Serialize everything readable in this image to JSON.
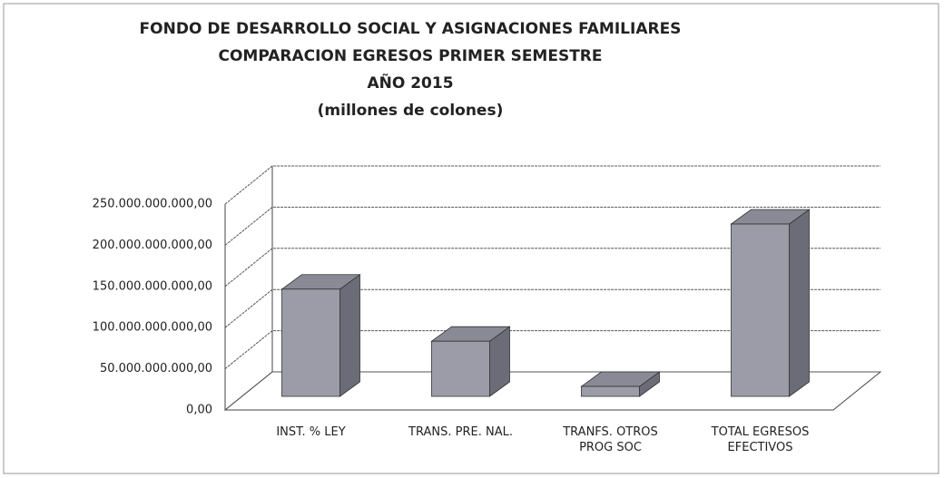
{
  "chart_data": {
    "type": "bar3d",
    "title": [
      "FONDO DE DESARROLLO SOCIAL Y ASIGNACIONES FAMILIARES",
      "COMPARACION EGRESOS PRIMER SEMESTRE",
      "AÑO 2015"
    ],
    "subtitle": "(millones de colones)",
    "categories": [
      "INST. % LEY",
      "TRANS.  PRE. NAL.",
      "TRANFS. OTROS PROG SOC",
      "TOTAL EGRESOS EFECTIVOS"
    ],
    "values": [
      140000000000,
      72000000000,
      13000000000,
      225000000000
    ],
    "color": "#9c9ca8",
    "ylim": [
      0,
      250000000000
    ],
    "yticks": [
      {
        "value": 0,
        "label": "0,00"
      },
      {
        "value": 50000000000,
        "label": "50.000.000.000,00"
      },
      {
        "value": 100000000000,
        "label": "100.000.000.000,00"
      },
      {
        "value": 150000000000,
        "label": "150.000.000.000,00"
      },
      {
        "value": 200000000000,
        "label": "200.000.000.000,00"
      },
      {
        "value": 250000000000,
        "label": "250.000.000.000,00"
      }
    ],
    "grid": true
  }
}
